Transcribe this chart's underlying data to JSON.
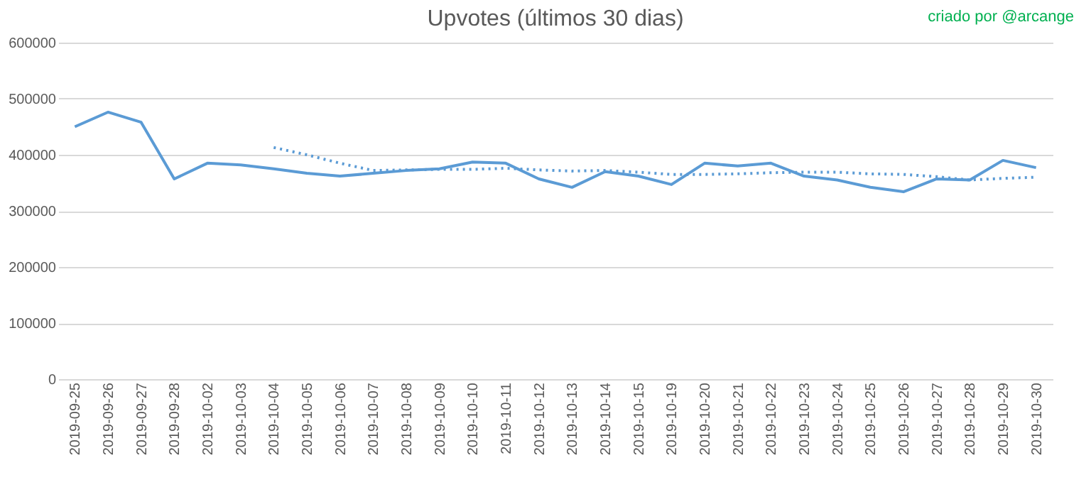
{
  "chart_data": {
    "type": "line",
    "title": "Upvotes (últimos 30 dias)",
    "annotations": [
      "criado por @arcange"
    ],
    "categories": [
      "2019-09-25",
      "2019-09-26",
      "2019-09-27",
      "2019-09-28",
      "2019-10-02",
      "2019-10-03",
      "2019-10-04",
      "2019-10-05",
      "2019-10-06",
      "2019-10-07",
      "2019-10-08",
      "2019-10-09",
      "2019-10-10",
      "2019-10-11",
      "2019-10-12",
      "2019-10-13",
      "2019-10-14",
      "2019-10-15",
      "2019-10-19",
      "2019-10-20",
      "2019-10-21",
      "2019-10-22",
      "2019-10-23",
      "2019-10-24",
      "2019-10-25",
      "2019-10-26",
      "2019-10-27",
      "2019-10-28",
      "2019-10-29",
      "2019-10-30"
    ],
    "series": [
      {
        "color": "#5b9bd5",
        "line_style": "solid",
        "values": [
          450000,
          476000,
          458000,
          357000,
          385000,
          382000,
          375000,
          367000,
          362000,
          367000,
          372000,
          375000,
          387000,
          385000,
          357000,
          342000,
          370000,
          362000,
          347000,
          385000,
          380000,
          385000,
          362000,
          355000,
          342000,
          334000,
          357000,
          355000,
          390000,
          377000
        ]
      },
      {
        "color": "#5b9bd5",
        "line_style": "dotted",
        "values": [
          null,
          null,
          null,
          null,
          null,
          null,
          413000,
          400000,
          385000,
          372000,
          373000,
          374000,
          374000,
          376000,
          373000,
          371000,
          372000,
          369000,
          365000,
          365000,
          366000,
          368000,
          369000,
          369000,
          366000,
          365000,
          361000,
          355000,
          358000,
          360000
        ]
      }
    ],
    "ylim": [
      0,
      600000
    ],
    "yticks": [
      0,
      100000,
      200000,
      300000,
      400000,
      500000,
      600000
    ],
    "grid": "y",
    "marker": "none"
  }
}
